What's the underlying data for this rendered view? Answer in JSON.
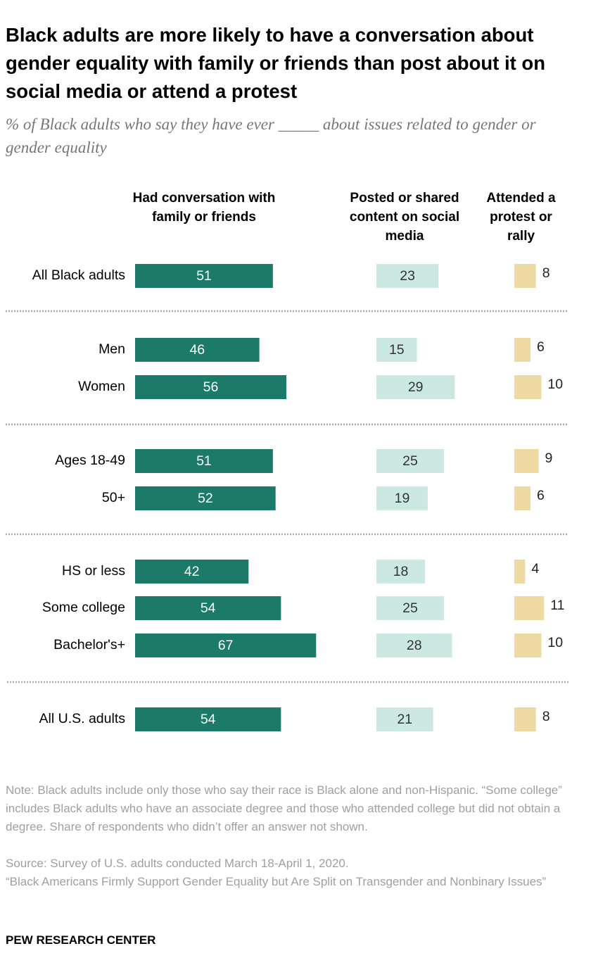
{
  "chart_data": {
    "type": "bar",
    "title": "Black adults are more likely to have a conversation about gender equality with family or friends than post about it on social media or attend a protest",
    "subtitle": "% of Black adults who say they have ever _____ about issues related to gender or gender equality",
    "categories": [
      "All Black adults",
      "Men",
      "Women",
      "Ages 18-49",
      "50+",
      "HS or less",
      "Some college",
      "Bachelor's+",
      "All U.S. adults"
    ],
    "series": [
      {
        "name": "Had conversation with family or friends",
        "color": "#1b7a68",
        "values": [
          51,
          46,
          56,
          51,
          52,
          42,
          54,
          67,
          54
        ]
      },
      {
        "name": "Posted or shared content on social media",
        "color": "#cbe9e2",
        "values": [
          23,
          15,
          29,
          25,
          19,
          18,
          25,
          28,
          21
        ]
      },
      {
        "name": "Attended a protest or rally",
        "color": "#eed9a2",
        "values": [
          8,
          6,
          10,
          9,
          6,
          4,
          11,
          10,
          8
        ]
      }
    ],
    "note": "Note: Black adults include only those who say their race is Black alone and non-Hispanic. “Some college” includes Black adults who have an associate degree and those who attended college but did not obtain a degree. Share of respondents who didn’t offer an answer not shown.",
    "source": "Source: Survey of U.S. adults conducted March 18-April 1, 2020.",
    "report": "“Black Americans Firmly Support Gender Equality but Are Split on Transgender and Nonbinary Issues”",
    "credit": "PEW RESEARCH CENTER"
  }
}
